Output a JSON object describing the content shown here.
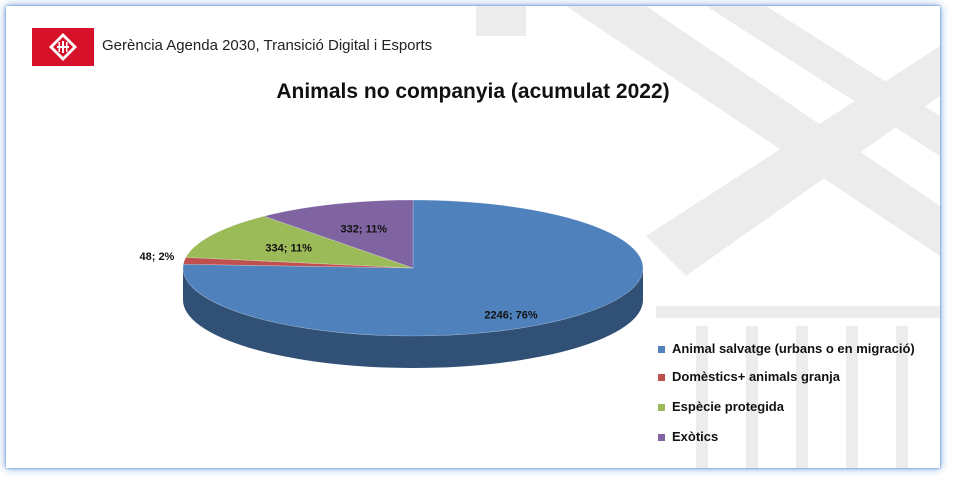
{
  "header": {
    "org_text": "Gerència Agenda 2030, Transició Digital i Esports",
    "logo_icon": "barcelona-city-logo-icon"
  },
  "chart_data": {
    "type": "pie",
    "title": "Animals no companyia (acumulat 2022)",
    "three_d": true,
    "legend_position": "right",
    "series": [
      {
        "name": "",
        "labels": [
          "Animal salvatge (urbans o en migració)",
          "Domèstics+ animals granja",
          "Espècie protegida",
          "Exòtics"
        ],
        "values": [
          2246,
          48,
          334,
          332
        ],
        "percent_labels": [
          "2246; 76%",
          "48; 2%",
          "334; 11%",
          "332; 11%"
        ],
        "colors": [
          "#4f81bd",
          "#c0504d",
          "#9bbb59",
          "#8064a2"
        ]
      }
    ]
  }
}
